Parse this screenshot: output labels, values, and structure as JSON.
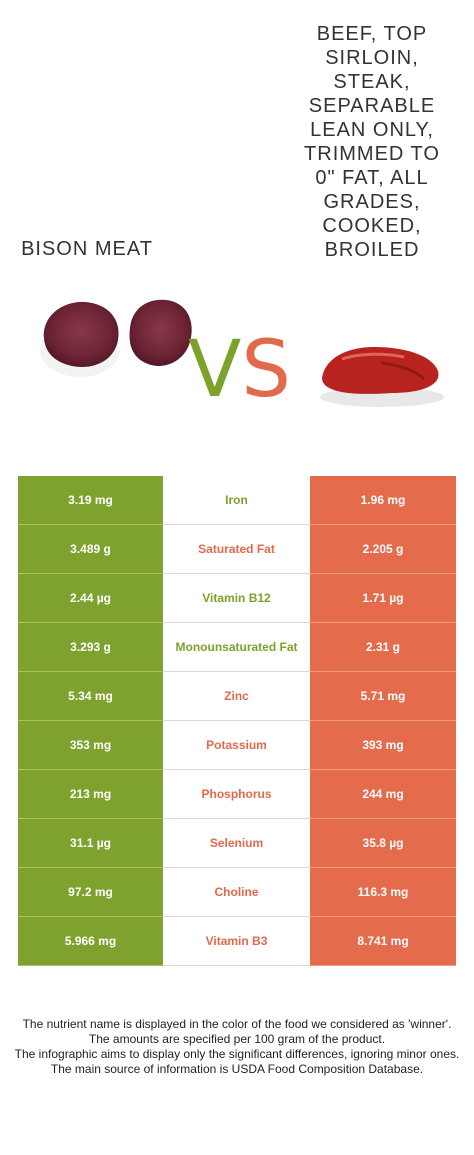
{
  "foods": {
    "left": "BISON MEAT",
    "right": "BEEF, TOP SIRLOIN, STEAK, SEPARABLE LEAN ONLY, TRIMMED TO 0\" FAT, ALL GRADES, COOKED, BROILED",
    "right_lines": [
      "BEEF, TOP",
      "SIRLOIN,",
      "STEAK,",
      "SEPARABLE",
      "LEAN ONLY,",
      "TRIMMED TO",
      "0\" FAT, ALL",
      "GRADES,",
      "COOKED,",
      "BROILED"
    ]
  },
  "vs": {
    "v": "V",
    "s": "S"
  },
  "colors": {
    "left": "#7fa22e",
    "right": "#e56b4d"
  },
  "rows": [
    {
      "nutrient": "Iron",
      "left": "3.19 mg",
      "right": "1.96 mg",
      "winner": "left"
    },
    {
      "nutrient": "Saturated Fat",
      "left": "3.489 g",
      "right": "2.205 g",
      "winner": "right"
    },
    {
      "nutrient": "Vitamin B12",
      "left": "2.44 µg",
      "right": "1.71 µg",
      "winner": "left"
    },
    {
      "nutrient": "Monounsaturated Fat",
      "left": "3.293 g",
      "right": "2.31 g",
      "winner": "left"
    },
    {
      "nutrient": "Zinc",
      "left": "5.34 mg",
      "right": "5.71 mg",
      "winner": "right"
    },
    {
      "nutrient": "Potassium",
      "left": "353 mg",
      "right": "393 mg",
      "winner": "right"
    },
    {
      "nutrient": "Phosphorus",
      "left": "213 mg",
      "right": "244 mg",
      "winner": "right"
    },
    {
      "nutrient": "Selenium",
      "left": "31.1 µg",
      "right": "35.8 µg",
      "winner": "right"
    },
    {
      "nutrient": "Choline",
      "left": "97.2 mg",
      "right": "116.3 mg",
      "winner": "right"
    },
    {
      "nutrient": "Vitamin B3",
      "left": "5.966 mg",
      "right": "8.741 mg",
      "winner": "right"
    }
  ],
  "notes": [
    "The nutrient name is displayed in the color of the food we considered as 'winner'.",
    "The amounts are specified per 100 gram of the product.",
    "The infographic aims to display only the significant differences, ignoring minor ones.",
    "The main source of information is USDA Food Composition Database."
  ]
}
